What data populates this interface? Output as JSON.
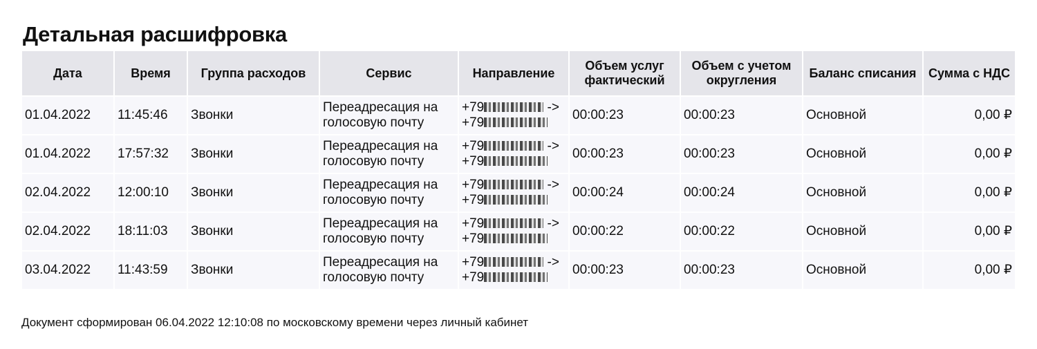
{
  "title": "Детальная расшифровка",
  "columns": [
    "Дата",
    "Время",
    "Группа расходов",
    "Сервис",
    "Направление",
    "Объем услуг фактический",
    "Объем с учетом округления",
    "Баланс списания",
    "Сумма с НДС"
  ],
  "rows": [
    {
      "date": "01.04.2022",
      "time": "11:45:46",
      "group": "Звонки",
      "service": "Переадресация на голосовую почту",
      "direction_from": "+79",
      "direction_arrow": "->",
      "direction_to": "+79",
      "volume_actual": "00:00:23",
      "volume_rounded": "00:00:23",
      "balance": "Основной",
      "amount": "0,00 ₽"
    },
    {
      "date": "01.04.2022",
      "time": "17:57:32",
      "group": "Звонки",
      "service": "Переадресация на голосовую почту",
      "direction_from": "+79",
      "direction_arrow": "->",
      "direction_to": "+79",
      "volume_actual": "00:00:23",
      "volume_rounded": "00:00:23",
      "balance": "Основной",
      "amount": "0,00 ₽"
    },
    {
      "date": "02.04.2022",
      "time": "12:00:10",
      "group": "Звонки",
      "service": "Переадресация на голосовую почту",
      "direction_from": "+79",
      "direction_arrow": "->",
      "direction_to": "+79",
      "volume_actual": "00:00:24",
      "volume_rounded": "00:00:24",
      "balance": "Основной",
      "amount": "0,00 ₽"
    },
    {
      "date": "02.04.2022",
      "time": "18:11:03",
      "group": "Звонки",
      "service": "Переадресация на голосовую почту",
      "direction_from": "+79",
      "direction_arrow": "->",
      "direction_to": "+79",
      "volume_actual": "00:00:22",
      "volume_rounded": "00:00:22",
      "balance": "Основной",
      "amount": "0,00 ₽"
    },
    {
      "date": "03.04.2022",
      "time": "11:43:59",
      "group": "Звонки",
      "service": "Переадресация на голосовую почту",
      "direction_from": "+79",
      "direction_arrow": "->",
      "direction_to": "+79",
      "volume_actual": "00:00:23",
      "volume_rounded": "00:00:23",
      "balance": "Основной",
      "amount": "0,00 ₽"
    }
  ],
  "footer": "Документ сформирован 06.04.2022 12:10:08 по московскому времени через личный кабинет"
}
